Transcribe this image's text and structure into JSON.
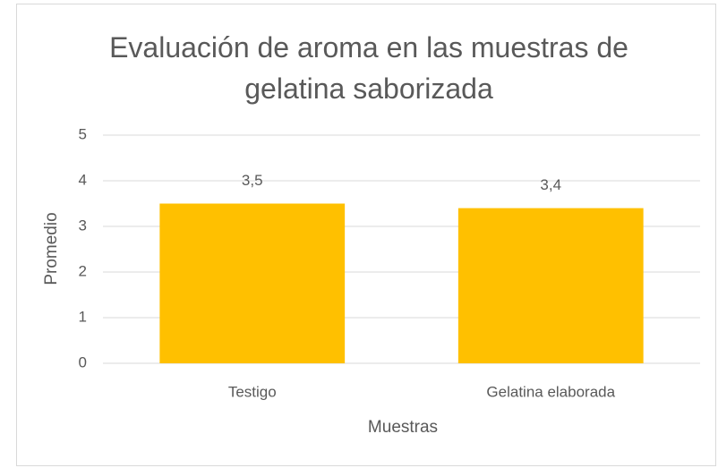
{
  "chart_data": {
    "type": "bar",
    "title": "Evaluación de aroma en las muestras de gelatina saborizada",
    "x_label": "Muestras",
    "y_label": "Promedio",
    "categories": [
      "Testigo",
      "Gelatina elaborada"
    ],
    "values": [
      3.5,
      3.4
    ],
    "value_labels": [
      "3,5",
      "3,4"
    ],
    "color": "#ffc000",
    "ylim": [
      0,
      5
    ],
    "yticks": [
      0,
      1,
      2,
      3,
      4,
      5
    ],
    "grid": true
  }
}
